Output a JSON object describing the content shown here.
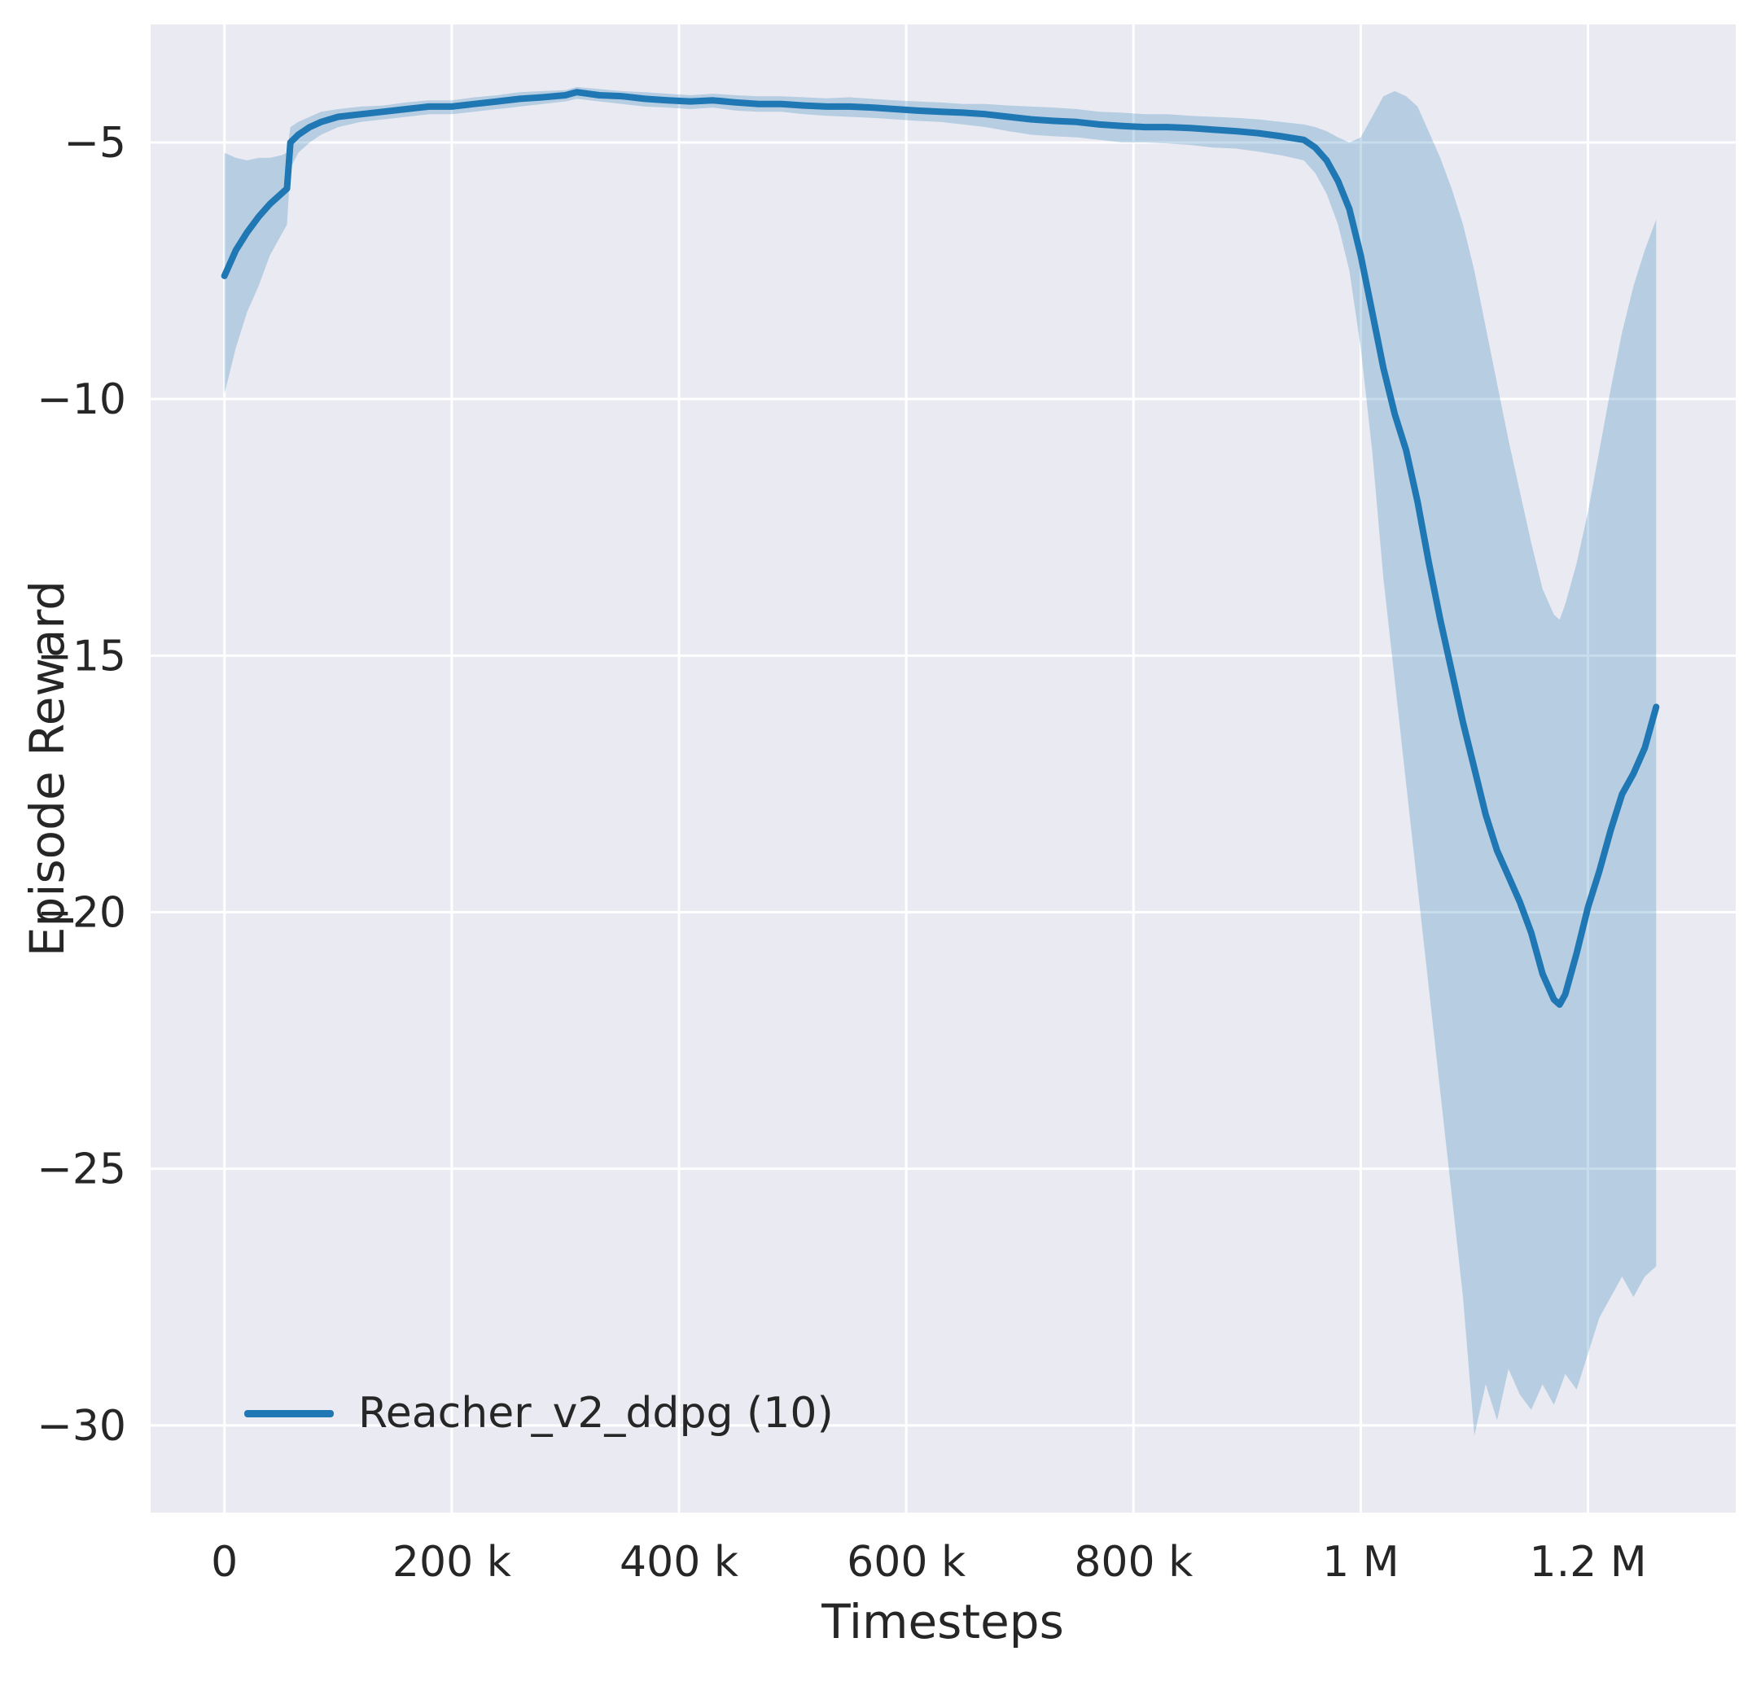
{
  "figure": {
    "background": "#ffffff",
    "axes_background": "#eaeaf2",
    "grid_color": "#ffffff",
    "tick_color": "#262626"
  },
  "chart_data": {
    "type": "line",
    "title": "",
    "xlabel": "Timesteps",
    "ylabel": "Episode Reward",
    "grid": true,
    "xlim": [
      -65000,
      1330000
    ],
    "ylim": [
      -31.7,
      -2.7
    ],
    "xticks": {
      "values": [
        0,
        200000,
        400000,
        600000,
        800000,
        1000000,
        1200000
      ],
      "labels": [
        "0",
        "200 k",
        "400 k",
        "600 k",
        "800 k",
        "1 M",
        "1.2 M"
      ]
    },
    "yticks": {
      "values": [
        -5,
        -10,
        -15,
        -20,
        -25,
        -30
      ],
      "labels": [
        "−5",
        "−10",
        "−15",
        "−20",
        "−25",
        "−30"
      ]
    },
    "legend": {
      "position": "lower left",
      "entries": [
        {
          "label": "Reacher_v2_ddpg (10)",
          "color": "#1f77b4"
        }
      ]
    },
    "series": [
      {
        "name": "Reacher_v2_ddpg (10)",
        "color": "#1f77b4",
        "band_alpha": 0.25,
        "x": [
          0,
          10000,
          20000,
          30000,
          40000,
          50000,
          55000,
          58000,
          65000,
          75000,
          85000,
          100000,
          120000,
          140000,
          160000,
          180000,
          200000,
          220000,
          240000,
          260000,
          280000,
          300000,
          310000,
          330000,
          350000,
          370000,
          390000,
          410000,
          430000,
          450000,
          470000,
          490000,
          510000,
          530000,
          550000,
          570000,
          590000,
          610000,
          630000,
          650000,
          670000,
          690000,
          710000,
          730000,
          750000,
          770000,
          790000,
          810000,
          830000,
          850000,
          870000,
          890000,
          910000,
          930000,
          950000,
          960000,
          970000,
          980000,
          990000,
          1000000,
          1010000,
          1020000,
          1030000,
          1040000,
          1050000,
          1060000,
          1070000,
          1080000,
          1090000,
          1100000,
          1110000,
          1120000,
          1130000,
          1140000,
          1150000,
          1160000,
          1170000,
          1175000,
          1180000,
          1190000,
          1200000,
          1210000,
          1220000,
          1230000,
          1240000,
          1250000,
          1260000
        ],
        "mean": [
          -7.6,
          -7.1,
          -6.75,
          -6.45,
          -6.2,
          -6.0,
          -5.9,
          -5.0,
          -4.85,
          -4.7,
          -4.6,
          -4.5,
          -4.45,
          -4.4,
          -4.35,
          -4.3,
          -4.3,
          -4.25,
          -4.2,
          -4.15,
          -4.12,
          -4.08,
          -4.02,
          -4.08,
          -4.1,
          -4.15,
          -4.18,
          -4.2,
          -4.18,
          -4.22,
          -4.25,
          -4.25,
          -4.28,
          -4.3,
          -4.3,
          -4.32,
          -4.35,
          -4.38,
          -4.4,
          -4.42,
          -4.45,
          -4.5,
          -4.55,
          -4.58,
          -4.6,
          -4.65,
          -4.68,
          -4.7,
          -4.7,
          -4.72,
          -4.75,
          -4.78,
          -4.82,
          -4.88,
          -4.95,
          -5.1,
          -5.35,
          -5.75,
          -6.3,
          -7.2,
          -8.3,
          -9.4,
          -10.3,
          -11.0,
          -12.0,
          -13.2,
          -14.3,
          -15.3,
          -16.3,
          -17.2,
          -18.1,
          -18.8,
          -19.3,
          -19.8,
          -20.4,
          -21.2,
          -21.7,
          -21.8,
          -21.6,
          -20.8,
          -19.9,
          -19.2,
          -18.4,
          -17.7,
          -17.3,
          -16.8,
          -16.0
        ],
        "lower": [
          -9.9,
          -9.0,
          -8.3,
          -7.8,
          -7.2,
          -6.8,
          -6.6,
          -5.5,
          -5.2,
          -5.0,
          -4.85,
          -4.7,
          -4.6,
          -4.55,
          -4.5,
          -4.45,
          -4.45,
          -4.4,
          -4.35,
          -4.3,
          -4.25,
          -4.2,
          -4.15,
          -4.2,
          -4.25,
          -4.3,
          -4.32,
          -4.35,
          -4.32,
          -4.38,
          -4.4,
          -4.4,
          -4.45,
          -4.48,
          -4.5,
          -4.52,
          -4.55,
          -4.58,
          -4.6,
          -4.65,
          -4.7,
          -4.78,
          -4.85,
          -4.88,
          -4.9,
          -4.95,
          -5.0,
          -5.0,
          -5.02,
          -5.05,
          -5.1,
          -5.12,
          -5.18,
          -5.25,
          -5.35,
          -5.6,
          -6.0,
          -6.6,
          -7.5,
          -9.0,
          -11.0,
          -13.5,
          -15.5,
          -17.5,
          -19.5,
          -21.5,
          -23.5,
          -25.5,
          -27.5,
          -30.2,
          -29.2,
          -29.9,
          -28.9,
          -29.4,
          -29.7,
          -29.2,
          -29.6,
          -29.3,
          -29.0,
          -29.3,
          -28.6,
          -27.9,
          -27.5,
          -27.1,
          -27.5,
          -27.1,
          -26.9
        ],
        "upper": [
          -5.2,
          -5.3,
          -5.35,
          -5.3,
          -5.3,
          -5.25,
          -5.2,
          -4.7,
          -4.6,
          -4.5,
          -4.4,
          -4.35,
          -4.3,
          -4.28,
          -4.22,
          -4.18,
          -4.18,
          -4.12,
          -4.08,
          -4.02,
          -4.0,
          -3.98,
          -3.92,
          -3.96,
          -4.0,
          -4.02,
          -4.05,
          -4.08,
          -4.05,
          -4.08,
          -4.1,
          -4.1,
          -4.12,
          -4.14,
          -4.12,
          -4.15,
          -4.18,
          -4.2,
          -4.22,
          -4.25,
          -4.25,
          -4.28,
          -4.3,
          -4.32,
          -4.35,
          -4.4,
          -4.42,
          -4.45,
          -4.45,
          -4.48,
          -4.5,
          -4.52,
          -4.55,
          -4.6,
          -4.65,
          -4.7,
          -4.78,
          -4.9,
          -5.0,
          -4.9,
          -4.5,
          -4.1,
          -4.0,
          -4.1,
          -4.3,
          -4.8,
          -5.3,
          -5.9,
          -6.6,
          -7.5,
          -8.6,
          -9.7,
          -10.8,
          -11.8,
          -12.8,
          -13.7,
          -14.2,
          -14.3,
          -14.0,
          -13.2,
          -12.2,
          -11.0,
          -9.8,
          -8.7,
          -7.8,
          -7.1,
          -6.5
        ]
      }
    ]
  }
}
